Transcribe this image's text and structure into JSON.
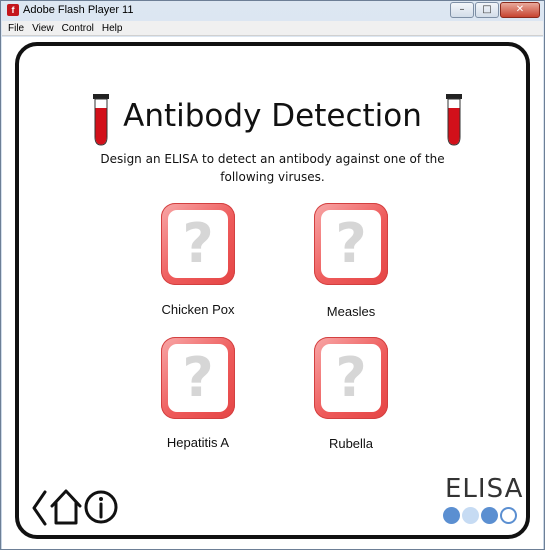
{
  "window": {
    "title": "Adobe Flash Player 11",
    "app_icon_glyph": "f",
    "buttons": {
      "minimize": "–",
      "maximize": "□",
      "close": "✕"
    }
  },
  "menubar": {
    "items": [
      "File",
      "View",
      "Control",
      "Help"
    ]
  },
  "page": {
    "title": "Antibody Detection",
    "subtitle_line1": "Design an ELISA to detect an antibody against one of the",
    "subtitle_line2": "following viruses.",
    "question_glyph": "?"
  },
  "viruses": [
    {
      "label": "Chicken Pox"
    },
    {
      "label": "Measles"
    },
    {
      "label": "Hepatitis A"
    },
    {
      "label": "Rubella"
    }
  ],
  "footer": {
    "brand": "ELISA",
    "nav_icons": [
      "back-arrow-icon",
      "home-icon",
      "info-icon"
    ],
    "progress_dots": [
      {
        "state": "filled",
        "color": "#5b8fd1"
      },
      {
        "state": "light",
        "color": "#c6dbf3"
      },
      {
        "state": "filled",
        "color": "#5b8fd1"
      },
      {
        "state": "outline",
        "color": "#5b8fd1"
      }
    ]
  },
  "colors": {
    "tile_accent": "#e54545",
    "tube_liquid": "#d2101a",
    "brand_blue": "#5b8fd1"
  }
}
